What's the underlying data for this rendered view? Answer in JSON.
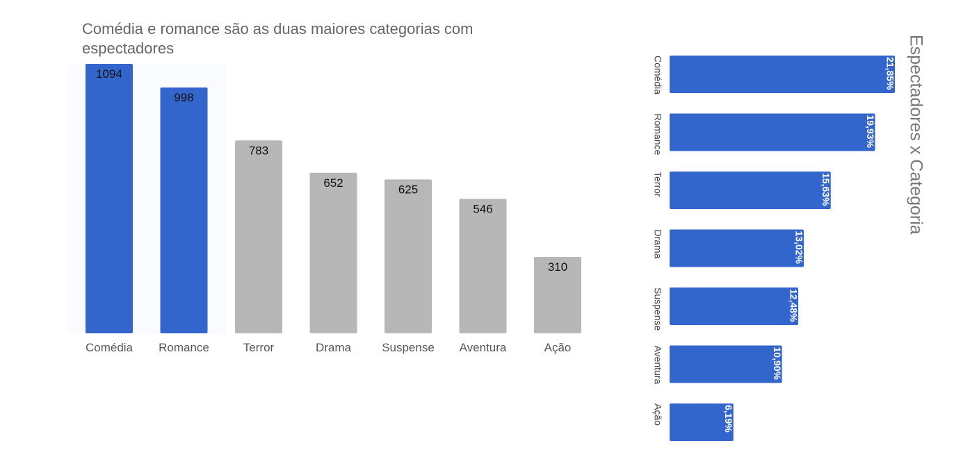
{
  "chart_data": [
    {
      "type": "bar",
      "title": "Comédia e romance são as duas maiores categorias com espectadores",
      "categories": [
        "Comédia",
        "Romance",
        "Terror",
        "Drama",
        "Suspense",
        "Aventura",
        "Ação"
      ],
      "values": [
        1094,
        998,
        783,
        652,
        625,
        546,
        310
      ],
      "value_labels": [
        "1094",
        "998",
        "783",
        "652",
        "625",
        "546",
        "310"
      ],
      "highlight_color": "#3366cc",
      "base_color": "#b7b7b7",
      "highlighted": [
        0,
        1
      ],
      "ylim": [
        0,
        1094
      ],
      "grid": false,
      "legend": "none"
    },
    {
      "type": "bar",
      "orientation": "horizontal",
      "title": "Espectadores x Categoria",
      "categories": [
        "Comédia",
        "Romance",
        "Terror",
        "Drama",
        "Suspense",
        "Aventura",
        "Ação"
      ],
      "values": [
        21.85,
        19.93,
        15.63,
        13.02,
        12.48,
        10.9,
        6.19
      ],
      "value_labels": [
        "21,85%",
        "19,93%",
        "15,63%",
        "13,02%",
        "12,48%",
        "10,90%",
        "6,19%"
      ],
      "color": "#3366cc",
      "text_rotated": true,
      "grid": false,
      "legend": "none"
    }
  ]
}
